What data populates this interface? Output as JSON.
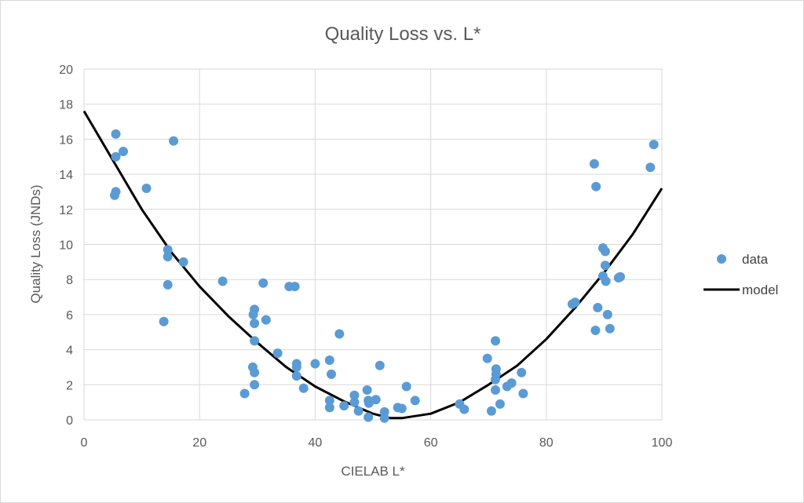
{
  "chart_data": {
    "type": "scatter",
    "title": "Quality Loss vs. L*",
    "xlabel": "CIELAB L*",
    "ylabel": "Quality Loss (JNDs)",
    "xlim": [
      0,
      100
    ],
    "ylim": [
      0,
      20
    ],
    "xticks": [
      0,
      20,
      40,
      60,
      80,
      100
    ],
    "yticks": [
      0,
      2,
      4,
      6,
      8,
      10,
      12,
      14,
      16,
      18,
      20
    ],
    "grid": true,
    "legend_position": "right",
    "colors": {
      "data": "#5b9bd5",
      "model": "#000000",
      "grid": "#d9d9d9",
      "text": "#595959"
    },
    "series": [
      {
        "name": "data",
        "kind": "scatter",
        "points": [
          [
            5.5,
            16.3
          ],
          [
            5.5,
            15.0
          ],
          [
            6.8,
            15.3
          ],
          [
            5.3,
            12.8
          ],
          [
            5.5,
            13.0
          ],
          [
            10.8,
            13.2
          ],
          [
            15.5,
            15.9
          ],
          [
            14.5,
            9.7
          ],
          [
            14.5,
            9.3
          ],
          [
            17.2,
            9.0
          ],
          [
            14.5,
            7.7
          ],
          [
            13.8,
            5.6
          ],
          [
            24.0,
            7.9
          ],
          [
            31.0,
            7.8
          ],
          [
            35.5,
            7.6
          ],
          [
            36.5,
            7.6
          ],
          [
            29.5,
            6.3
          ],
          [
            29.3,
            6.0
          ],
          [
            29.5,
            5.5
          ],
          [
            31.5,
            5.7
          ],
          [
            29.5,
            4.5
          ],
          [
            33.5,
            3.8
          ],
          [
            29.2,
            3.0
          ],
          [
            29.5,
            2.7
          ],
          [
            29.5,
            2.0
          ],
          [
            27.8,
            1.5
          ],
          [
            36.8,
            3.2
          ],
          [
            36.8,
            3.0
          ],
          [
            36.8,
            2.5
          ],
          [
            38.0,
            1.8
          ],
          [
            40.0,
            3.2
          ],
          [
            42.5,
            3.4
          ],
          [
            42.8,
            2.6
          ],
          [
            44.2,
            4.9
          ],
          [
            42.5,
            1.1
          ],
          [
            42.5,
            0.7
          ],
          [
            45.0,
            0.8
          ],
          [
            46.8,
            1.4
          ],
          [
            46.8,
            1.0
          ],
          [
            47.5,
            0.5
          ],
          [
            49.0,
            1.7
          ],
          [
            49.2,
            1.1
          ],
          [
            49.3,
            0.95
          ],
          [
            49.2,
            0.15
          ],
          [
            50.5,
            1.15
          ],
          [
            51.2,
            3.1
          ],
          [
            52.0,
            0.45
          ],
          [
            52.0,
            0.1
          ],
          [
            54.3,
            0.7
          ],
          [
            55.0,
            0.65
          ],
          [
            55.8,
            1.9
          ],
          [
            57.3,
            1.1
          ],
          [
            65.0,
            0.9
          ],
          [
            65.8,
            0.6
          ],
          [
            69.8,
            3.5
          ],
          [
            70.5,
            0.5
          ],
          [
            71.2,
            4.5
          ],
          [
            71.3,
            2.9
          ],
          [
            71.3,
            2.6
          ],
          [
            71.2,
            2.3
          ],
          [
            71.2,
            1.7
          ],
          [
            72.0,
            0.9
          ],
          [
            73.2,
            1.9
          ],
          [
            74.0,
            2.1
          ],
          [
            75.7,
            2.7
          ],
          [
            76.0,
            1.5
          ],
          [
            84.5,
            6.6
          ],
          [
            85.0,
            6.7
          ],
          [
            88.3,
            14.6
          ],
          [
            88.6,
            13.3
          ],
          [
            88.5,
            5.1
          ],
          [
            88.9,
            6.4
          ],
          [
            89.8,
            9.8
          ],
          [
            90.2,
            9.6
          ],
          [
            90.2,
            8.8
          ],
          [
            89.8,
            8.2
          ],
          [
            90.3,
            7.9
          ],
          [
            90.6,
            6.0
          ],
          [
            91.0,
            5.2
          ],
          [
            92.5,
            8.1
          ],
          [
            92.8,
            8.15
          ],
          [
            98.0,
            14.4
          ],
          [
            98.6,
            15.7
          ]
        ]
      },
      {
        "name": "model",
        "kind": "line",
        "points": [
          [
            0,
            17.6
          ],
          [
            5,
            14.8
          ],
          [
            10,
            12.0
          ],
          [
            15,
            9.6
          ],
          [
            20,
            7.6
          ],
          [
            25,
            5.9
          ],
          [
            30,
            4.4
          ],
          [
            35,
            3.0
          ],
          [
            40,
            1.9
          ],
          [
            45,
            1.05
          ],
          [
            50,
            0.35
          ],
          [
            53,
            0.1
          ],
          [
            55,
            0.1
          ],
          [
            60,
            0.35
          ],
          [
            65,
            1.0
          ],
          [
            70,
            2.0
          ],
          [
            75,
            3.1
          ],
          [
            80,
            4.6
          ],
          [
            85,
            6.4
          ],
          [
            90,
            8.4
          ],
          [
            95,
            10.6
          ],
          [
            100,
            13.2
          ]
        ]
      }
    ]
  }
}
